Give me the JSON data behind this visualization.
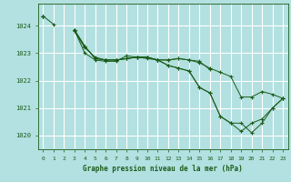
{
  "title": "Graphe pression niveau de la mer (hPa)",
  "bg_color": "#b3e0e0",
  "grid_color": "#c8e8e8",
  "line_color": "#1a5c1a",
  "xlim": [
    -0.5,
    23.5
  ],
  "ylim": [
    1019.5,
    1024.8
  ],
  "yticks": [
    1020,
    1021,
    1022,
    1023,
    1024
  ],
  "xticks": [
    0,
    1,
    2,
    3,
    4,
    5,
    6,
    7,
    8,
    9,
    10,
    11,
    12,
    13,
    14,
    15,
    16,
    17,
    18,
    19,
    20,
    21,
    22,
    23
  ],
  "series": [
    [
      1024.35,
      1024.05,
      null,
      1023.8,
      1023.2,
      1022.85,
      1022.75,
      1022.75,
      1022.8,
      1022.85,
      1022.8,
      1022.75,
      1022.75,
      1022.8,
      1022.75,
      1022.65,
      1022.45,
      1022.3,
      1022.15,
      1021.4,
      1021.4,
      1021.6,
      1021.5,
      1021.35
    ],
    [
      1024.35,
      null,
      null,
      1023.85,
      1023.0,
      1022.75,
      1022.7,
      1022.7,
      1022.9,
      1022.85,
      1022.85,
      1022.75,
      1022.75,
      1022.8,
      1022.75,
      1022.7,
      1022.4,
      null,
      null,
      null,
      null,
      null,
      null,
      null
    ],
    [
      1024.35,
      null,
      null,
      1023.85,
      1023.25,
      1022.8,
      1022.75,
      1022.75,
      1022.8,
      1022.85,
      1022.85,
      1022.75,
      1022.55,
      1022.45,
      1022.35,
      1021.75,
      1021.55,
      1020.7,
      1020.45,
      1020.45,
      1020.1,
      1020.45,
      1021.0,
      1021.35
    ],
    [
      1024.35,
      null,
      null,
      1023.85,
      1023.25,
      1022.8,
      1022.75,
      1022.75,
      1022.8,
      1022.85,
      1022.85,
      1022.75,
      1022.55,
      1022.45,
      1022.35,
      1021.75,
      1021.55,
      1020.7,
      1020.45,
      1020.15,
      1020.45,
      1020.6,
      1021.0,
      1021.35
    ]
  ]
}
